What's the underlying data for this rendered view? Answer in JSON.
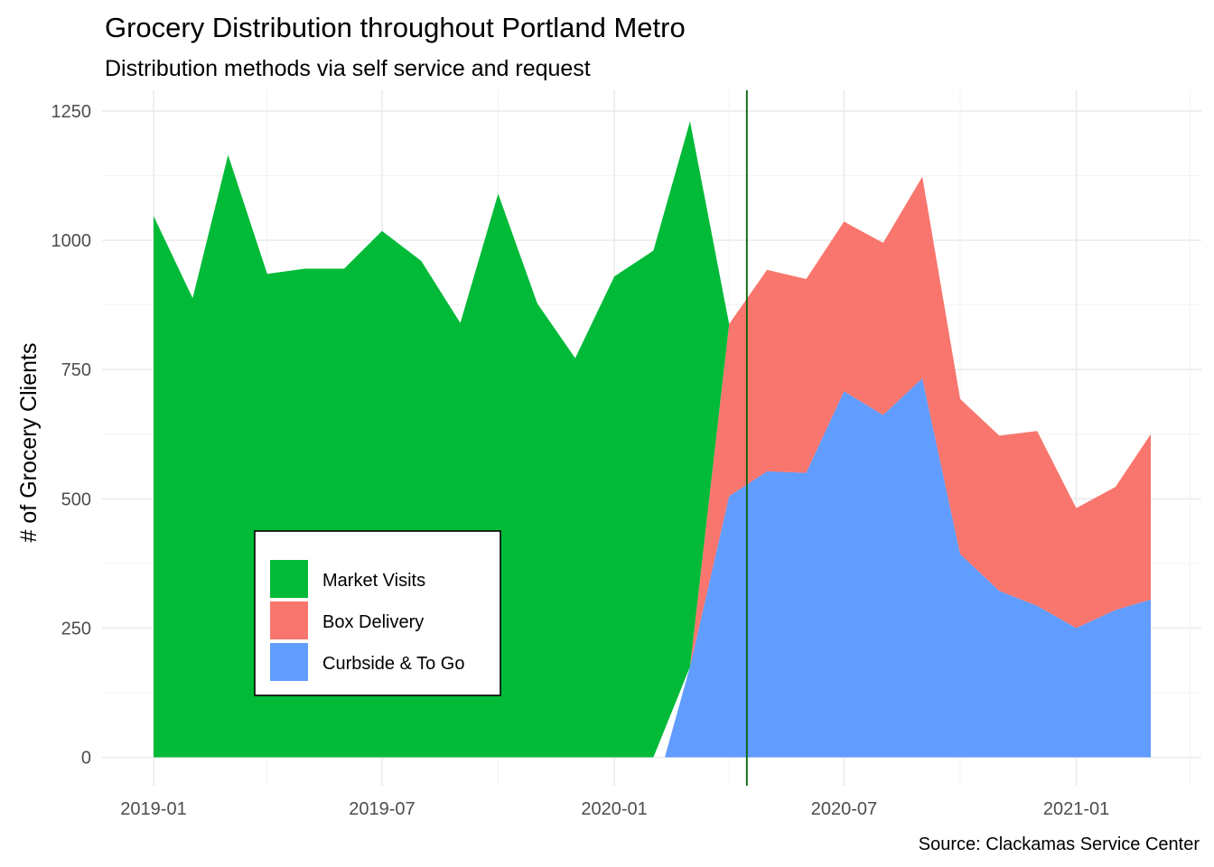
{
  "chart_data": {
    "type": "area",
    "title": "Grocery Distribution throughout Portland Metro",
    "subtitle": "Distribution methods via self service and request",
    "xlabel": "",
    "ylabel": "# of Grocery Clients",
    "caption": "Source: Clackamas Service Center",
    "stacked": true,
    "x": [
      "2019-01",
      "2019-02",
      "2019-03",
      "2019-04",
      "2019-05",
      "2019-06",
      "2019-07",
      "2019-08",
      "2019-09",
      "2019-10",
      "2019-11",
      "2019-12",
      "2020-01",
      "2020-02",
      "2020-03",
      "2020-04",
      "2020-05",
      "2020-06",
      "2020-07",
      "2020-08",
      "2020-09",
      "2020-10",
      "2020-11",
      "2020-12",
      "2021-01",
      "2021-02",
      "2021-03"
    ],
    "x_ticks": [
      "2019-01",
      "2019-07",
      "2020-01",
      "2020-07",
      "2021-01"
    ],
    "y_ticks": [
      0,
      250,
      500,
      750,
      1000,
      1250
    ],
    "ylim": [
      -55,
      1290
    ],
    "grid": true,
    "legend_position": "inside-bottom-left",
    "series": [
      {
        "name": "Curbside & To Go",
        "color": "#619CFF",
        "values": [
          0,
          0,
          0,
          0,
          0,
          0,
          0,
          0,
          0,
          0,
          0,
          0,
          0,
          0,
          175,
          505,
          553,
          550,
          708,
          662,
          733,
          393,
          322,
          293,
          250,
          285,
          305
        ]
      },
      {
        "name": "Box Delivery",
        "color": "#F8766D",
        "values": [
          0,
          0,
          0,
          0,
          0,
          0,
          0,
          0,
          0,
          0,
          0,
          0,
          0,
          0,
          0,
          333,
          390,
          375,
          328,
          333,
          390,
          300,
          300,
          338,
          232,
          238,
          320
        ]
      },
      {
        "name": "Market Visits",
        "color": "#00BA38",
        "values": [
          1047,
          888,
          1165,
          935,
          945,
          945,
          1018,
          960,
          840,
          1090,
          878,
          772,
          930,
          980,
          1055,
          0,
          0,
          0,
          0,
          0,
          0,
          0,
          0,
          0,
          0,
          0,
          0
        ]
      }
    ],
    "legend_order": [
      "Market Visits",
      "Box Delivery",
      "Curbside & To Go"
    ],
    "vline": {
      "x": "2020-04-15",
      "color": "#006400"
    },
    "zero_start": {
      "series": "Curbside & To Go",
      "x": "2020-02-10"
    }
  }
}
